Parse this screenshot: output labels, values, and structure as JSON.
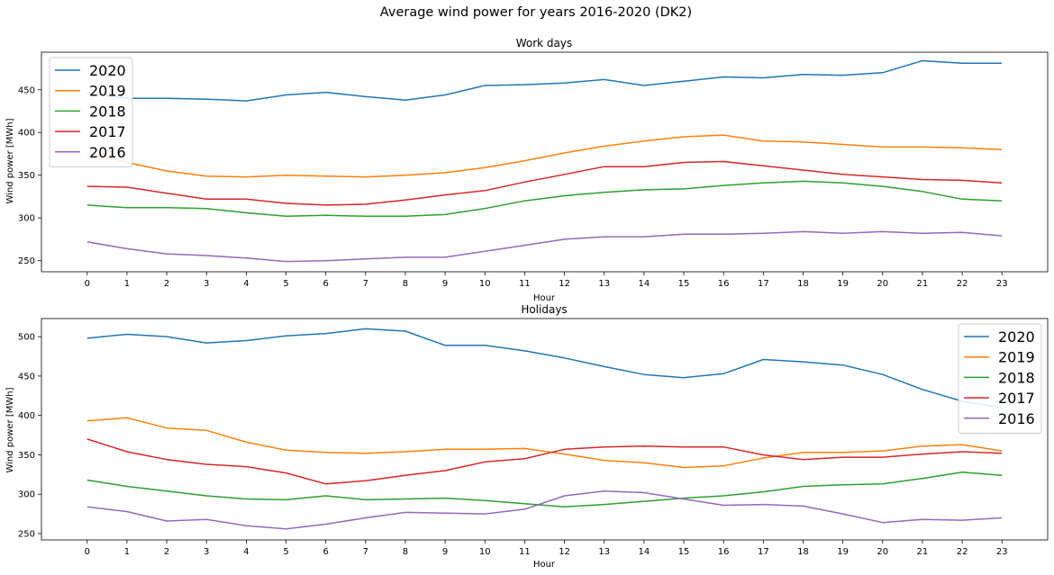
{
  "figure": {
    "title": "Average wind power for years 2016-2020 (DK2)"
  },
  "colors": {
    "2020": "#1f77b4",
    "2019": "#ff7f0e",
    "2018": "#2ca02c",
    "2017": "#d62728",
    "2016": "#9467bd"
  },
  "chart_data": [
    {
      "type": "line",
      "title": "Work days",
      "xlabel": "Hour",
      "ylabel": "Wind power [MWh]",
      "x": [
        0,
        1,
        2,
        3,
        4,
        5,
        6,
        7,
        8,
        9,
        10,
        11,
        12,
        13,
        14,
        15,
        16,
        17,
        18,
        19,
        20,
        21,
        22,
        23
      ],
      "xlim": [
        -1.15,
        24.15
      ],
      "ylim": [
        237,
        494
      ],
      "yticks": [
        250,
        300,
        350,
        400,
        450
      ],
      "legend_position": "upper-left",
      "series": [
        {
          "name": "2020",
          "values": [
            446,
            440,
            440,
            439,
            437,
            444,
            447,
            442,
            438,
            444,
            455,
            456,
            458,
            462,
            455,
            460,
            465,
            464,
            468,
            467,
            470,
            484,
            481,
            481
          ]
        },
        {
          "name": "2019",
          "values": [
            376,
            365,
            355,
            349,
            348,
            350,
            349,
            348,
            350,
            353,
            359,
            367,
            376,
            384,
            390,
            395,
            397,
            390,
            389,
            386,
            383,
            383,
            382,
            380
          ]
        },
        {
          "name": "2018",
          "values": [
            315,
            312,
            312,
            311,
            306,
            302,
            303,
            302,
            302,
            304,
            311,
            320,
            326,
            330,
            333,
            334,
            338,
            341,
            343,
            341,
            337,
            331,
            322,
            320
          ]
        },
        {
          "name": "2017",
          "values": [
            337,
            336,
            329,
            322,
            322,
            317,
            315,
            316,
            321,
            327,
            332,
            342,
            351,
            360,
            360,
            365,
            366,
            361,
            356,
            351,
            348,
            345,
            344,
            341
          ]
        },
        {
          "name": "2016",
          "values": [
            272,
            264,
            258,
            256,
            253,
            249,
            250,
            252,
            254,
            254,
            261,
            268,
            275,
            278,
            278,
            281,
            281,
            282,
            284,
            282,
            284,
            282,
            283,
            279
          ]
        }
      ]
    },
    {
      "type": "line",
      "title": "Holidays",
      "xlabel": "Hour",
      "ylabel": "Wind power [MWh]",
      "x": [
        0,
        1,
        2,
        3,
        4,
        5,
        6,
        7,
        8,
        9,
        10,
        11,
        12,
        13,
        14,
        15,
        16,
        17,
        18,
        19,
        20,
        21,
        22,
        23
      ],
      "xlim": [
        -1.15,
        24.15
      ],
      "ylim": [
        242,
        523
      ],
      "yticks": [
        250,
        300,
        350,
        400,
        450,
        500
      ],
      "legend_position": "upper-right",
      "series": [
        {
          "name": "2020",
          "values": [
            498,
            503,
            500,
            492,
            495,
            501,
            504,
            510,
            507,
            489,
            489,
            482,
            473,
            462,
            452,
            448,
            453,
            471,
            468,
            464,
            452,
            433,
            418,
            410
          ]
        },
        {
          "name": "2019",
          "values": [
            393,
            397,
            384,
            381,
            366,
            356,
            353,
            352,
            354,
            357,
            357,
            358,
            351,
            343,
            340,
            334,
            336,
            346,
            353,
            353,
            355,
            361,
            363,
            355
          ]
        },
        {
          "name": "2018",
          "values": [
            318,
            310,
            304,
            298,
            294,
            293,
            298,
            293,
            294,
            295,
            292,
            288,
            284,
            287,
            291,
            295,
            298,
            303,
            310,
            312,
            313,
            320,
            328,
            324
          ]
        },
        {
          "name": "2017",
          "values": [
            370,
            354,
            344,
            338,
            335,
            327,
            313,
            317,
            324,
            330,
            341,
            345,
            357,
            360,
            361,
            360,
            360,
            350,
            344,
            347,
            347,
            351,
            354,
            352
          ]
        },
        {
          "name": "2016",
          "values": [
            284,
            278,
            266,
            268,
            260,
            256,
            262,
            270,
            277,
            276,
            275,
            281,
            298,
            304,
            302,
            294,
            286,
            287,
            285,
            275,
            264,
            268,
            267,
            270
          ]
        }
      ]
    }
  ]
}
